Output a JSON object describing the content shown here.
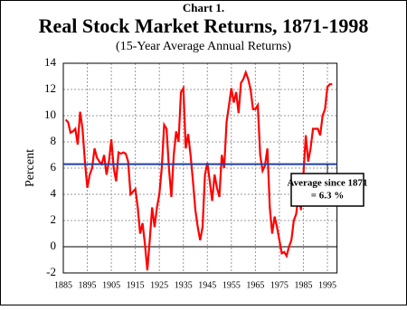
{
  "chart_data": {
    "type": "line",
    "label": "Chart 1.",
    "title": "Real Stock Market Returns, 1871-1998",
    "subtitle": "(15-Year Average Annual Returns)",
    "y_label": "Percent",
    "x": [
      1886,
      1887,
      1888,
      1889,
      1890,
      1891,
      1892,
      1893,
      1894,
      1895,
      1896,
      1897,
      1898,
      1899,
      1900,
      1901,
      1902,
      1903,
      1904,
      1905,
      1906,
      1907,
      1908,
      1909,
      1910,
      1911,
      1912,
      1913,
      1914,
      1915,
      1916,
      1917,
      1918,
      1919,
      1920,
      1921,
      1922,
      1923,
      1924,
      1925,
      1926,
      1927,
      1928,
      1929,
      1930,
      1931,
      1932,
      1933,
      1934,
      1935,
      1936,
      1937,
      1938,
      1939,
      1940,
      1941,
      1942,
      1943,
      1944,
      1945,
      1946,
      1947,
      1948,
      1949,
      1950,
      1951,
      1952,
      1953,
      1954,
      1955,
      1956,
      1957,
      1958,
      1959,
      1960,
      1961,
      1962,
      1963,
      1964,
      1965,
      1966,
      1967,
      1968,
      1969,
      1970,
      1971,
      1972,
      1973,
      1974,
      1975,
      1976,
      1977,
      1978,
      1979,
      1980,
      1981,
      1982,
      1983,
      1984,
      1985,
      1986,
      1987,
      1988,
      1989,
      1990,
      1991,
      1992,
      1993,
      1994,
      1995,
      1996,
      1997
    ],
    "series": [
      {
        "name": "15-Year Average Annual Return",
        "color": "#ff0000",
        "values": [
          9.7,
          9.5,
          8.7,
          8.8,
          9.0,
          7.8,
          10.3,
          9.0,
          6.5,
          4.5,
          5.5,
          6.0,
          7.5,
          6.8,
          6.5,
          6.3,
          7.0,
          5.5,
          6.5,
          8.2,
          6.0,
          5.0,
          7.2,
          7.1,
          7.2,
          7.1,
          6.5,
          4.0,
          4.2,
          4.4,
          3.0,
          1.0,
          1.8,
          0.2,
          -1.8,
          0.5,
          3.0,
          1.5,
          3.0,
          4.0,
          6.0,
          9.3,
          9.0,
          6.0,
          3.8,
          7.0,
          8.8,
          8.0,
          11.8,
          12.1,
          7.5,
          8.6,
          7.0,
          5.0,
          2.8,
          1.5,
          0.5,
          1.5,
          5.5,
          6.4,
          5.0,
          3.5,
          5.5,
          4.5,
          3.8,
          7.0,
          6.0,
          9.5,
          10.8,
          12.1,
          11.0,
          11.8,
          10.2,
          12.5,
          12.8,
          13.3,
          12.8,
          12.0,
          10.5,
          10.5,
          10.8,
          7.0,
          5.8,
          6.2,
          7.5,
          3.0,
          1.0,
          2.3,
          1.5,
          0.5,
          -0.5,
          -0.4,
          -0.7,
          0.0,
          0.5,
          2.0,
          2.5,
          4.0,
          2.8,
          5.5,
          8.5,
          6.5,
          7.5,
          9.0,
          9.0,
          9.0,
          8.5,
          10.0,
          10.5,
          12.2,
          12.4,
          12.4
        ]
      }
    ],
    "average": {
      "value": 6.3,
      "color": "#1f3fa8",
      "label": [
        "Average since 1871",
        "= 6.3 %"
      ]
    },
    "xlim": [
      1885,
      1999
    ],
    "xticks": [
      1885,
      1895,
      1905,
      1915,
      1925,
      1935,
      1945,
      1955,
      1965,
      1975,
      1985,
      1995
    ],
    "ylim": [
      -2,
      14
    ],
    "yticks": [
      -2,
      0,
      2,
      4,
      6,
      8,
      10,
      12,
      14
    ],
    "grid": true
  }
}
